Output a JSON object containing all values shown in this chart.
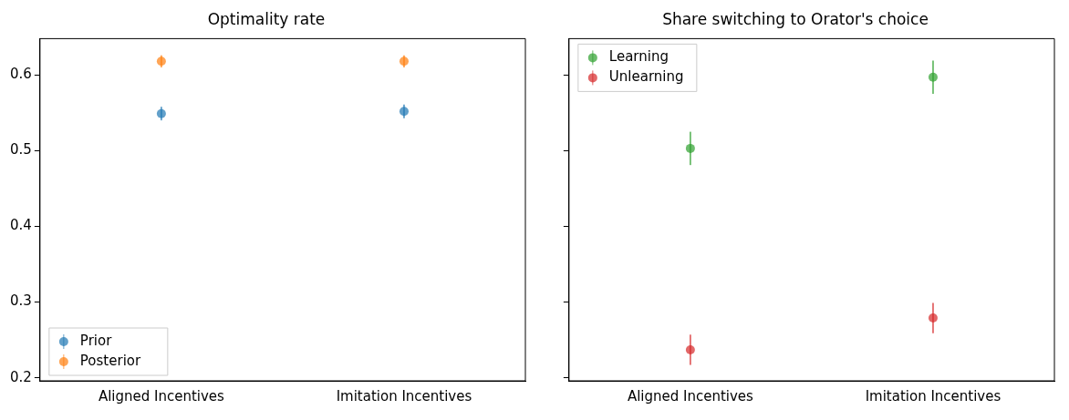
{
  "chart_data": [
    {
      "type": "scatter",
      "title": "Optimality rate",
      "categories": [
        "Aligned Incentives",
        "Imitation Incentives"
      ],
      "series": [
        {
          "name": "Prior",
          "color": "#1f77b4",
          "values": [
            0.549,
            0.552
          ],
          "errors": [
            0.009,
            0.009
          ]
        },
        {
          "name": "Posterior",
          "color": "#ff7f0e",
          "values": [
            0.618,
            0.618
          ],
          "errors": [
            0.008,
            0.008
          ]
        }
      ],
      "ylim": [
        0.196,
        0.648
      ],
      "yticks": [
        0.2,
        0.3,
        0.4,
        0.5,
        0.6
      ],
      "grid": false,
      "legend": "bottom left",
      "marker": "circle"
    },
    {
      "type": "scatter",
      "title": "Share switching to Orator's choice",
      "categories": [
        "Aligned Incentives",
        "Imitation Incentives"
      ],
      "series": [
        {
          "name": "Learning",
          "color": "#2ca02c",
          "values": [
            0.503,
            0.597
          ],
          "errors": [
            0.022,
            0.022
          ]
        },
        {
          "name": "Unlearning",
          "color": "#d62728",
          "values": [
            0.237,
            0.279
          ],
          "errors": [
            0.02,
            0.02
          ]
        }
      ],
      "ylim": [
        0.196,
        0.648
      ],
      "yticks": [
        0.2,
        0.3,
        0.4,
        0.5,
        0.6
      ],
      "grid": false,
      "legend": "top left",
      "marker": "circle",
      "tick_labels": "x"
    }
  ]
}
